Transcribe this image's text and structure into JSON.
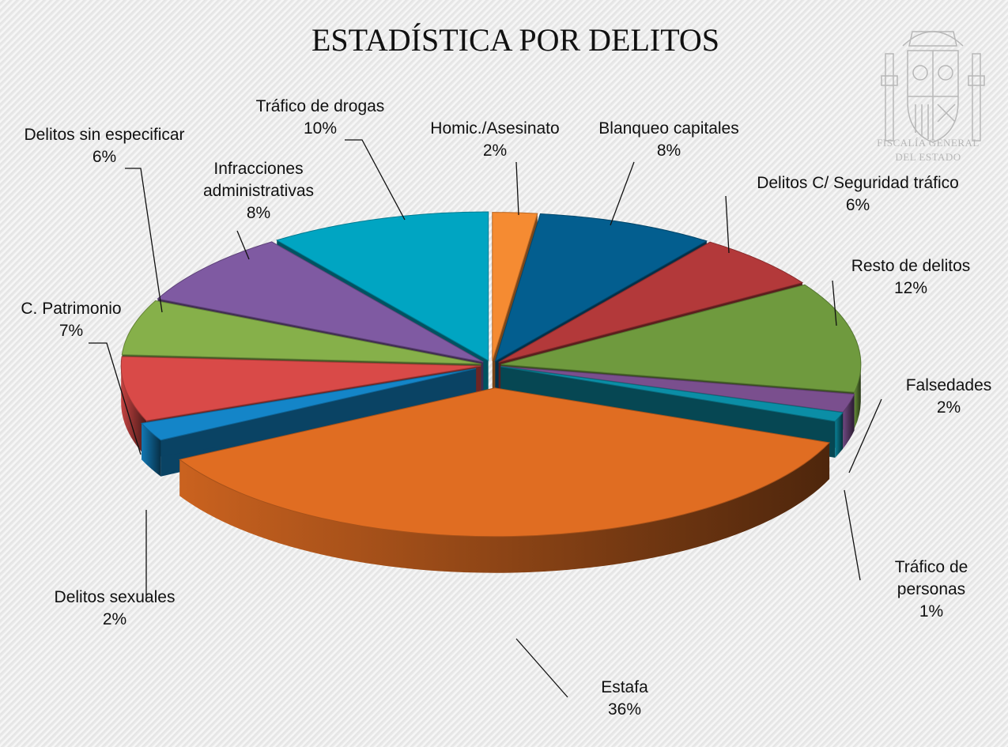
{
  "header": {
    "logo_line1": "FISCALÍA GENERAL",
    "logo_line2": "DEL ESTADO"
  },
  "chart_data": {
    "type": "pie",
    "title": "ESTADÍSTICA POR DELITOS",
    "unit": "%",
    "slices": [
      {
        "name": "Homic./Asesinato",
        "value": 2,
        "color": "#f58b32"
      },
      {
        "name": "Blanqueo capitales",
        "value": 8,
        "color": "#035e8f"
      },
      {
        "name": "Delitos C/ Seguridad tráfico",
        "value": 6,
        "color": "#b3393a"
      },
      {
        "name": "Resto de delitos",
        "value": 12,
        "color": "#6f9a3e"
      },
      {
        "name": "Falsedades",
        "value": 2,
        "color": "#7a4f8e"
      },
      {
        "name": "Tráfico de personas",
        "value": 1,
        "color": "#0b8ea6"
      },
      {
        "name": "Estafa",
        "value": 36,
        "color": "#e06d22"
      },
      {
        "name": "Delitos sexuales",
        "value": 2,
        "color": "#1485c8"
      },
      {
        "name": "C. Patrimonio",
        "value": 7,
        "color": "#d94a48"
      },
      {
        "name": "Delitos sin especificar",
        "value": 6,
        "color": "#86b04a"
      },
      {
        "name": "Infracciones administrativas",
        "value": 8,
        "color": "#7f5aa2"
      },
      {
        "name": "Tráfico de drogas",
        "value": 10,
        "color": "#00a5c2"
      }
    ]
  }
}
